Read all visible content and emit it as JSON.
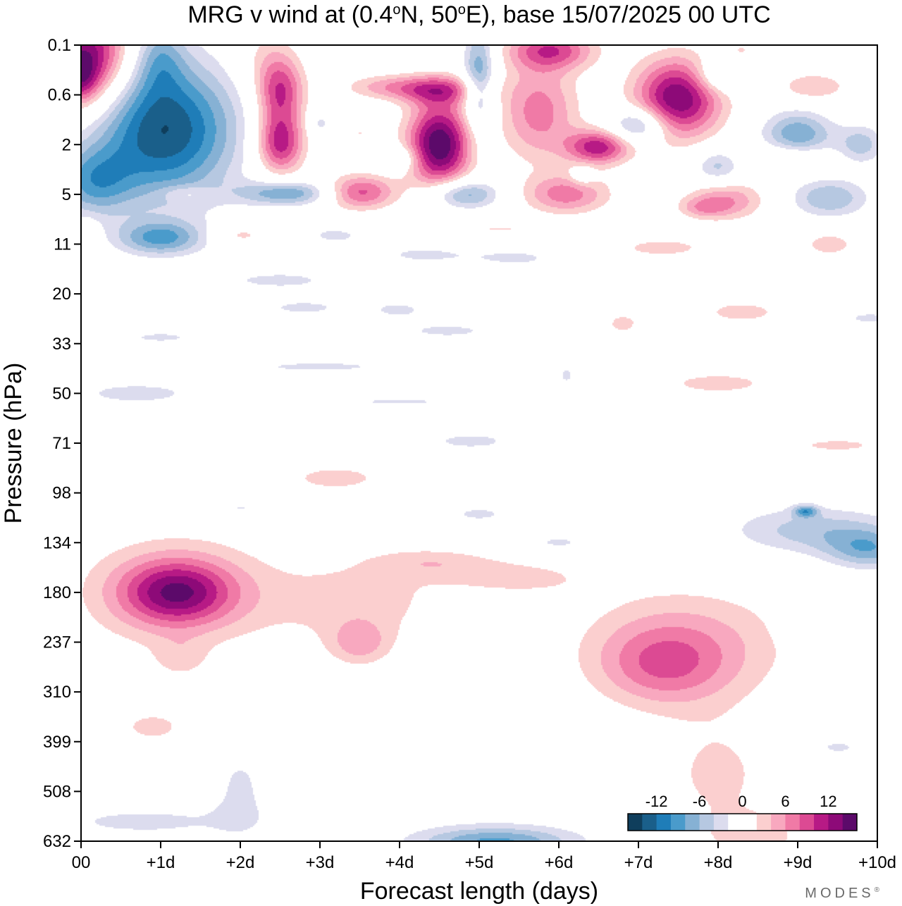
{
  "chart_data": {
    "type": "contour",
    "title_main": "MRG v wind at (0.4",
    "title_n": "N, 50",
    "title_e": "E),  base 15/07/2025  00 UTC",
    "title_deg": "o",
    "xlabel": "Forecast length (days)",
    "ylabel": "Pressure (hPa)",
    "xlim": [
      0,
      10
    ],
    "x_ticks": [
      {
        "v": 0,
        "label": "00"
      },
      {
        "v": 1,
        "label": "+1d"
      },
      {
        "v": 2,
        "label": "+2d"
      },
      {
        "v": 3,
        "label": "+3d"
      },
      {
        "v": 4,
        "label": "+4d"
      },
      {
        "v": 5,
        "label": "+5d"
      },
      {
        "v": 6,
        "label": "+6d"
      },
      {
        "v": 7,
        "label": "+7d"
      },
      {
        "v": 8,
        "label": "+8d"
      },
      {
        "v": 9,
        "label": "+9d"
      },
      {
        "v": 10,
        "label": "+10d"
      }
    ],
    "y_ticks": [
      "0.1",
      "0.6",
      "2",
      "5",
      "11",
      "20",
      "33",
      "50",
      "71",
      "98",
      "134",
      "180",
      "237",
      "310",
      "399",
      "508",
      "632"
    ],
    "colorbar": {
      "tick_labels": [
        {
          "pos": 2,
          "label": "-12"
        },
        {
          "pos": 5,
          "label": "-6"
        },
        {
          "pos": 8,
          "label": "0"
        },
        {
          "pos": 11,
          "label": "6"
        },
        {
          "pos": 14,
          "label": "12"
        }
      ],
      "colors": [
        "#0f3e5c",
        "#1a5f8a",
        "#1f7db8",
        "#4a9bcb",
        "#86b1d4",
        "#b6c8e1",
        "#dcdcee",
        "#ffffff",
        "#ffffff",
        "#fbcfcf",
        "#f8a8bf",
        "#f07aa6",
        "#dc4a93",
        "#b71a85",
        "#8d0a78",
        "#5c0a6a"
      ]
    },
    "features": [
      {
        "x": 0.1,
        "p": 0.16,
        "rx": 0.5,
        "ry": 1.0,
        "v": 15
      },
      {
        "x": 0.0,
        "p": 0.33,
        "rx": 0.2,
        "ry": 0.5,
        "v": 6
      },
      {
        "x": 1.05,
        "p": 1.4,
        "rx": 0.9,
        "ry": 1.4,
        "v": -15
      },
      {
        "x": 1.0,
        "p": 0.15,
        "rx": 0.3,
        "ry": 0.7,
        "v": -5
      },
      {
        "x": 0.15,
        "p": 4.0,
        "rx": 0.5,
        "ry": 0.7,
        "v": -8
      },
      {
        "x": 1.0,
        "p": 10.0,
        "rx": 0.55,
        "ry": 0.35,
        "v": -9
      },
      {
        "x": 0.1,
        "p": 10.0,
        "rx": 0.15,
        "ry": 0.4,
        "v": 3
      },
      {
        "x": 1.3,
        "p": 4.9,
        "rx": 0.3,
        "ry": 0.15,
        "v": 3
      },
      {
        "x": 2.6,
        "p": 4.9,
        "rx": 0.6,
        "ry": 0.25,
        "v": -9
      },
      {
        "x": 2.0,
        "p": 9.5,
        "rx": 0.35,
        "ry": 0.2,
        "v": 4
      },
      {
        "x": 3.2,
        "p": 9.5,
        "rx": 0.5,
        "ry": 0.25,
        "v": -3.5
      },
      {
        "x": 2.5,
        "p": 0.55,
        "rx": 0.3,
        "ry": 0.7,
        "v": 11
      },
      {
        "x": 2.5,
        "p": 2.0,
        "rx": 0.3,
        "ry": 0.6,
        "v": 12
      },
      {
        "x": 2.3,
        "p": 0.15,
        "rx": 0.4,
        "ry": 0.7,
        "v": 3
      },
      {
        "x": 3.0,
        "p": 1.2,
        "rx": 0.15,
        "ry": 0.25,
        "v": -4
      },
      {
        "x": 3.5,
        "p": 1.5,
        "rx": 0.3,
        "ry": 0.2,
        "v": 3
      },
      {
        "x": 3.5,
        "p": 4.8,
        "rx": 0.45,
        "ry": 0.35,
        "v": 10
      },
      {
        "x": 3.8,
        "p": 0.45,
        "rx": 0.55,
        "ry": 0.25,
        "v": 5
      },
      {
        "x": 4.5,
        "p": 0.5,
        "rx": 0.55,
        "ry": 0.3,
        "v": 9
      },
      {
        "x": 4.5,
        "p": 2.0,
        "rx": 0.4,
        "ry": 0.85,
        "v": 17
      },
      {
        "x": 4.0,
        "p": 2.6,
        "rx": 0.25,
        "ry": 0.25,
        "v": -5
      },
      {
        "x": 4.8,
        "p": 5.0,
        "rx": 0.45,
        "ry": 0.3,
        "v": -9
      },
      {
        "x": 5.0,
        "p": 0.3,
        "rx": 0.2,
        "ry": 1.1,
        "v": -9
      },
      {
        "x": 5.9,
        "p": 0.12,
        "rx": 0.55,
        "ry": 0.4,
        "v": 10
      },
      {
        "x": 5.75,
        "p": 0.9,
        "rx": 0.5,
        "ry": 1.0,
        "v": 8
      },
      {
        "x": 6.1,
        "p": 5.0,
        "rx": 0.55,
        "ry": 0.4,
        "v": 8
      },
      {
        "x": 6.5,
        "p": 2.1,
        "rx": 0.4,
        "ry": 0.35,
        "v": 12
      },
      {
        "x": 6.3,
        "p": 3.5,
        "rx": 0.15,
        "ry": 0.2,
        "v": -4
      },
      {
        "x": 7.0,
        "p": 1.25,
        "rx": 0.35,
        "ry": 0.35,
        "v": -9
      },
      {
        "x": 7.5,
        "p": 0.65,
        "rx": 0.55,
        "ry": 0.8,
        "v": 15
      },
      {
        "x": 8.0,
        "p": 0.3,
        "rx": 0.3,
        "ry": 0.35,
        "v": -6
      },
      {
        "x": 8.0,
        "p": 3.0,
        "rx": 0.3,
        "ry": 0.35,
        "v": -6
      },
      {
        "x": 8.1,
        "p": 5.5,
        "rx": 0.5,
        "ry": 0.4,
        "v": 7
      },
      {
        "x": 7.8,
        "p": 6.2,
        "rx": 0.3,
        "ry": 0.2,
        "v": 4
      },
      {
        "x": 8.9,
        "p": 2.6,
        "rx": 0.5,
        "ry": 0.3,
        "v": 5
      },
      {
        "x": 9.0,
        "p": 1.6,
        "rx": 0.45,
        "ry": 0.5,
        "v": -9
      },
      {
        "x": 9.2,
        "p": 0.45,
        "rx": 0.45,
        "ry": 0.3,
        "v": 5
      },
      {
        "x": 8.3,
        "p": 0.12,
        "rx": 0.2,
        "ry": 0.15,
        "v": 3
      },
      {
        "x": 9.8,
        "p": 2.0,
        "rx": 0.3,
        "ry": 0.4,
        "v": -6
      },
      {
        "x": 9.4,
        "p": 5.3,
        "rx": 0.5,
        "ry": 0.4,
        "v": -7
      },
      {
        "x": 7.3,
        "p": 11.5,
        "rx": 0.9,
        "ry": 0.3,
        "v": 3.5
      },
      {
        "x": 9.4,
        "p": 11.0,
        "rx": 0.4,
        "ry": 0.3,
        "v": 4
      },
      {
        "x": 5.2,
        "p": 8.6,
        "rx": 1.2,
        "ry": 0.12,
        "v": 3
      },
      {
        "x": 4.3,
        "p": 12.5,
        "rx": 0.7,
        "ry": 0.22,
        "v": -3.5
      },
      {
        "x": 5.5,
        "p": 13.0,
        "rx": 0.6,
        "ry": 0.2,
        "v": -3.5
      },
      {
        "x": 2.5,
        "p": 17.0,
        "rx": 1.0,
        "ry": 0.25,
        "v": -3.5
      },
      {
        "x": 2.8,
        "p": 23.0,
        "rx": 0.7,
        "ry": 0.2,
        "v": -3.5
      },
      {
        "x": 4.0,
        "p": 23.5,
        "rx": 0.4,
        "ry": 0.2,
        "v": -3.5
      },
      {
        "x": 4.6,
        "p": 29.0,
        "rx": 0.8,
        "ry": 0.2,
        "v": -3.5
      },
      {
        "x": 6.8,
        "p": 27.0,
        "rx": 0.3,
        "ry": 0.3,
        "v": 3.5
      },
      {
        "x": 8.3,
        "p": 24.0,
        "rx": 0.8,
        "ry": 0.35,
        "v": 3.5
      },
      {
        "x": 9.9,
        "p": 25.5,
        "rx": 0.5,
        "ry": 0.18,
        "v": -3.5
      },
      {
        "x": 1.0,
        "p": 31.0,
        "rx": 0.6,
        "ry": 0.15,
        "v": -3.5
      },
      {
        "x": 3.0,
        "p": 40.0,
        "rx": 1.3,
        "ry": 0.15,
        "v": -3.5
      },
      {
        "x": 8.0,
        "p": 46.0,
        "rx": 1.1,
        "ry": 0.35,
        "v": 3.5
      },
      {
        "x": 6.1,
        "p": 43.0,
        "rx": 0.15,
        "ry": 0.3,
        "v": -3.5
      },
      {
        "x": 0.7,
        "p": 50.0,
        "rx": 1.2,
        "ry": 0.35,
        "v": -3.5
      },
      {
        "x": 4.0,
        "p": 53.0,
        "rx": 0.9,
        "ry": 0.1,
        "v": -3.5
      },
      {
        "x": 4.9,
        "p": 70.0,
        "rx": 0.8,
        "ry": 0.25,
        "v": -3.5
      },
      {
        "x": 9.5,
        "p": 72.0,
        "rx": 0.8,
        "ry": 0.2,
        "v": 3.5
      },
      {
        "x": 3.2,
        "p": 89.0,
        "rx": 0.7,
        "ry": 0.3,
        "v": 4
      },
      {
        "x": 2.0,
        "p": 108.0,
        "rx": 0.3,
        "ry": 0.15,
        "v": -3.5
      },
      {
        "x": 5.0,
        "p": 112.0,
        "rx": 0.5,
        "ry": 0.2,
        "v": -3.5
      },
      {
        "x": 6.0,
        "p": 134.0,
        "rx": 0.5,
        "ry": 0.2,
        "v": -3.5
      },
      {
        "x": 9.2,
        "p": 124.0,
        "rx": 1.1,
        "ry": 0.5,
        "v": -6
      },
      {
        "x": 9.9,
        "p": 140.0,
        "rx": 0.55,
        "ry": 0.4,
        "v": -7
      },
      {
        "x": 9.1,
        "p": 110.0,
        "rx": 0.15,
        "ry": 0.12,
        "v": -8
      },
      {
        "x": 1.2,
        "p": 180.0,
        "rx": 1.2,
        "ry": 1.1,
        "v": 7
      },
      {
        "x": 1.2,
        "p": 180.0,
        "rx": 0.65,
        "ry": 0.6,
        "v": 9
      },
      {
        "x": 1.25,
        "p": 260.0,
        "rx": 0.35,
        "ry": 0.4,
        "v": 3
      },
      {
        "x": 3.5,
        "p": 190.0,
        "rx": 1.1,
        "ry": 0.9,
        "v": 4
      },
      {
        "x": 3.5,
        "p": 240.0,
        "rx": 0.4,
        "ry": 0.45,
        "v": 5
      },
      {
        "x": 4.4,
        "p": 150.0,
        "rx": 0.8,
        "ry": 0.3,
        "v": 3.5
      },
      {
        "x": 5.5,
        "p": 165.0,
        "rx": 1.0,
        "ry": 0.4,
        "v": 3.5
      },
      {
        "x": 7.6,
        "p": 240.0,
        "rx": 1.4,
        "ry": 1.2,
        "v": 5.5
      },
      {
        "x": 7.3,
        "p": 270.0,
        "rx": 0.8,
        "ry": 0.8,
        "v": 5.5
      },
      {
        "x": 8.0,
        "p": 470.0,
        "rx": 0.8,
        "ry": 1.2,
        "v": 3.5
      },
      {
        "x": 8.5,
        "p": 620.0,
        "rx": 0.7,
        "ry": 0.5,
        "v": 3.5
      },
      {
        "x": 9.3,
        "p": 220.0,
        "rx": 0.4,
        "ry": 0.35,
        "v": -3.5
      },
      {
        "x": 9.5,
        "p": 410.0,
        "rx": 0.4,
        "ry": 0.2,
        "v": -3.5
      },
      {
        "x": 0.9,
        "p": 370.0,
        "rx": 0.6,
        "ry": 0.45,
        "v": 3.5
      },
      {
        "x": 0.8,
        "p": 580.0,
        "rx": 1.6,
        "ry": 0.4,
        "v": -3.5
      },
      {
        "x": 2.0,
        "p": 500.0,
        "rx": 0.35,
        "ry": 0.9,
        "v": -3.5
      },
      {
        "x": 5.2,
        "p": 632.0,
        "rx": 1.4,
        "ry": 0.55,
        "v": -3.5
      },
      {
        "x": 5.2,
        "p": 632.0,
        "rx": 0.9,
        "ry": 0.25,
        "v": -6
      }
    ]
  },
  "brand": "MODES",
  "brand_mark": "®"
}
